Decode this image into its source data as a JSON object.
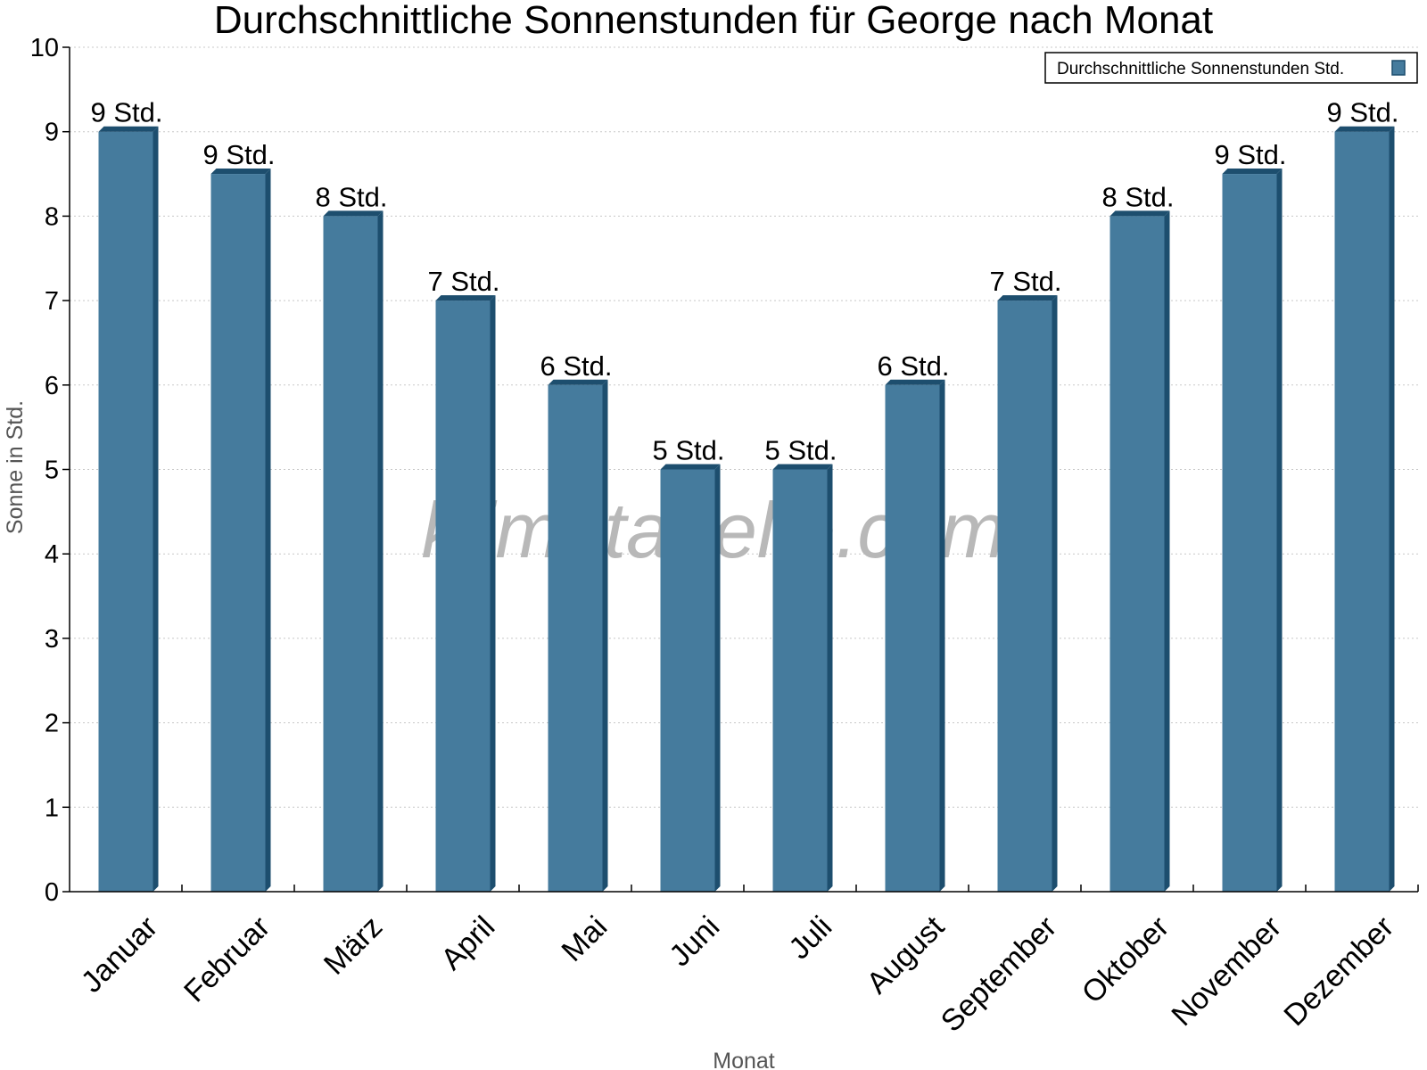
{
  "chart_data": {
    "type": "bar",
    "title": "Durchschnittliche Sonnenstunden für George nach Monat",
    "xlabel": "Monat",
    "ylabel": "Sonne in Std.",
    "ylim": [
      0,
      10
    ],
    "yticks": [
      0,
      1,
      2,
      3,
      4,
      5,
      6,
      7,
      8,
      9,
      10
    ],
    "grid": true,
    "legend_position": "top-right",
    "categories": [
      "Januar",
      "Februar",
      "März",
      "April",
      "Mai",
      "Juni",
      "Juli",
      "August",
      "September",
      "Oktober",
      "November",
      "Dezember"
    ],
    "series": [
      {
        "name": "Durchschnittliche Sonnenstunden Std.",
        "values": [
          9,
          8.5,
          8,
          7,
          6,
          5,
          5,
          6,
          7,
          8,
          8.5,
          9
        ],
        "labels": [
          "9 Std.",
          "9 Std.",
          "8 Std.",
          "7 Std.",
          "6 Std.",
          "5 Std.",
          "5 Std.",
          "6 Std.",
          "7 Std.",
          "8 Std.",
          "9 Std.",
          "9 Std."
        ],
        "color": "#457b9d",
        "side_color": "#1d4e6e"
      }
    ]
  },
  "watermark": "klimatabelle.com"
}
